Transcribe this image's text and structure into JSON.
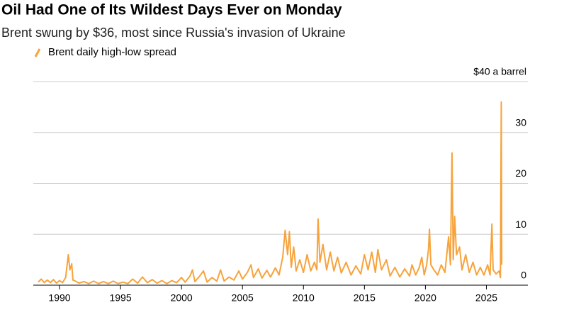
{
  "chart_data": {
    "type": "line",
    "title": "Oil Had One of Its Wildest Days Ever on Monday",
    "subtitle": "Brent swung by $36, most since Russia's invasion of Ukraine",
    "x": [
      1988.25,
      1988.5,
      1988.75,
      1989,
      1989.25,
      1989.5,
      1989.75,
      1990,
      1990.25,
      1990.5,
      1990.6,
      1990.72,
      1990.85,
      1991,
      1991.1,
      1991.3,
      1991.6,
      1992,
      1992.4,
      1992.8,
      1993.2,
      1993.6,
      1994,
      1994.4,
      1994.8,
      1995.2,
      1995.6,
      1996,
      1996.4,
      1996.8,
      1997.2,
      1997.6,
      1998,
      1998.4,
      1998.8,
      1999.2,
      1999.6,
      2000,
      2000.3,
      2000.7,
      2000.9,
      2001.1,
      2001.5,
      2001.8,
      2002.1,
      2002.5,
      2002.9,
      2003.2,
      2003.5,
      2003.9,
      2004.3,
      2004.7,
      2005,
      2005.4,
      2005.7,
      2005.9,
      2006.3,
      2006.6,
      2007,
      2007.3,
      2007.7,
      2008,
      2008.3,
      2008.5,
      2008.7,
      2008.85,
      2009,
      2009.2,
      2009.4,
      2009.7,
      2010,
      2010.3,
      2010.6,
      2010.9,
      2011.1,
      2011.2,
      2011.35,
      2011.6,
      2011.9,
      2012.2,
      2012.5,
      2012.8,
      2013.1,
      2013.5,
      2013.9,
      2014.3,
      2014.7,
      2015,
      2015.3,
      2015.6,
      2015.9,
      2016.1,
      2016.4,
      2016.8,
      2017.1,
      2017.5,
      2017.9,
      2018.3,
      2018.7,
      2018.9,
      2019.2,
      2019.5,
      2019.7,
      2019.9,
      2020.1,
      2020.25,
      2020.33,
      2020.45,
      2020.7,
      2021,
      2021.3,
      2021.6,
      2021.9,
      2022.05,
      2022.18,
      2022.28,
      2022.4,
      2022.55,
      2022.8,
      2023,
      2023.3,
      2023.6,
      2023.9,
      2024.2,
      2024.5,
      2024.8,
      2025.1,
      2025.3,
      2025.45,
      2025.55,
      2025.8,
      2026.05,
      2026.15,
      2026.22,
      2026.26
    ],
    "series": [
      {
        "name": "Brent daily high-low spread",
        "color": "#f7a33b",
        "values": [
          0.6,
          1.2,
          0.5,
          1.0,
          0.5,
          1.1,
          0.4,
          0.9,
          0.5,
          1.5,
          3.5,
          6.0,
          3.0,
          4.2,
          1.0,
          0.8,
          0.4,
          0.7,
          0.3,
          0.8,
          0.3,
          0.7,
          0.3,
          0.8,
          0.3,
          0.6,
          0.3,
          1.2,
          0.4,
          1.6,
          0.5,
          1.1,
          0.4,
          0.9,
          0.3,
          0.9,
          0.5,
          1.5,
          0.6,
          1.8,
          3.0,
          0.7,
          1.8,
          2.8,
          0.6,
          1.5,
          0.8,
          3.0,
          0.8,
          1.6,
          1.0,
          2.8,
          1.2,
          2.5,
          4.0,
          1.5,
          3.2,
          1.4,
          2.9,
          1.6,
          3.4,
          2.0,
          5.5,
          10.8,
          6.0,
          10.5,
          3.5,
          7.5,
          2.8,
          5.0,
          2.5,
          6.0,
          2.8,
          4.5,
          3.0,
          13.0,
          4.5,
          8.0,
          3.0,
          6.5,
          2.8,
          5.5,
          2.4,
          4.5,
          2.0,
          3.8,
          2.2,
          6.0,
          3.0,
          6.5,
          2.5,
          7.0,
          3.0,
          5.0,
          1.8,
          3.5,
          1.6,
          3.2,
          1.8,
          4.0,
          2.0,
          3.5,
          5.5,
          2.0,
          4.0,
          7.0,
          11.0,
          4.0,
          3.0,
          2.0,
          4.0,
          2.5,
          9.5,
          4.0,
          26.0,
          5.0,
          13.5,
          6.0,
          7.5,
          3.0,
          6.0,
          2.5,
          4.5,
          2.0,
          3.5,
          2.0,
          4.0,
          2.0,
          12.0,
          3.0,
          2.2,
          2.8,
          1.5,
          36.0,
          4.0
        ]
      }
    ],
    "xlim": [
      1987.85,
      2028.4
    ],
    "xticks": [
      1990,
      1995,
      2000,
      2005,
      2010,
      2015,
      2020,
      2025
    ],
    "ylim": [
      0,
      40
    ],
    "yticks": [
      0,
      10,
      20,
      30,
      {
        "value": 40,
        "label": "$40 a barrel"
      }
    ],
    "grid": true
  }
}
